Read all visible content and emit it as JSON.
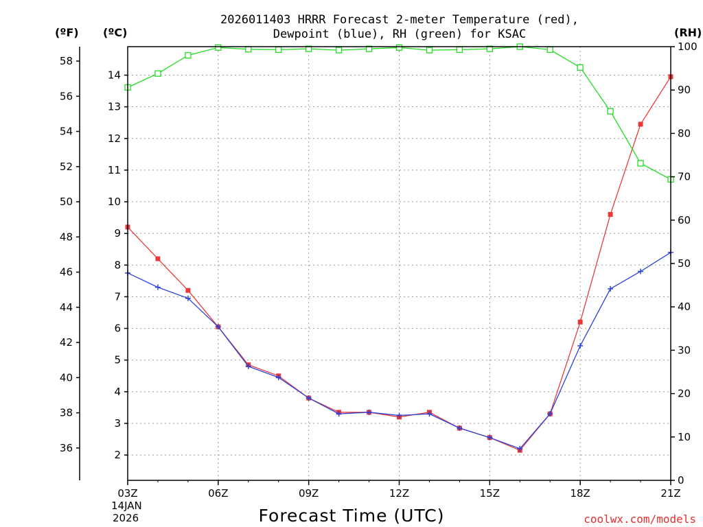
{
  "chart_data": {
    "type": "line",
    "title_line1": "2026011403 HRRR Forecast 2-meter Temperature (red),",
    "title_line2": "Dewpoint (blue), RH (green) for KSAC",
    "unit_f": "(ºF)",
    "unit_c": "(ºC)",
    "unit_rh": "(RH)",
    "xlabel": "Forecast Time (UTC)",
    "credit": "coolwx.com/models",
    "date_line1": "14JAN",
    "date_line2": "2026",
    "x_hours": [
      3,
      4,
      5,
      6,
      7,
      8,
      9,
      10,
      11,
      12,
      13,
      14,
      15,
      16,
      17,
      18,
      19,
      20,
      21
    ],
    "x_ticks": [
      {
        "hour": 3,
        "label": "03Z"
      },
      {
        "hour": 6,
        "label": "06Z"
      },
      {
        "hour": 9,
        "label": "09Z"
      },
      {
        "hour": 12,
        "label": "12Z"
      },
      {
        "hour": 15,
        "label": "15Z"
      },
      {
        "hour": 18,
        "label": "18Z"
      },
      {
        "hour": 21,
        "label": "21Z"
      }
    ],
    "xlim": [
      3,
      21
    ],
    "ylim_c": [
      1.2,
      14.9
    ],
    "ylim_f": [
      34.16,
      58.82
    ],
    "ylim_rh": [
      0,
      100
    ],
    "c_ticks": [
      "2",
      "3",
      "4",
      "5",
      "6",
      "7",
      "8",
      "9",
      "10",
      "11",
      "12",
      "13",
      "14"
    ],
    "f_ticks": [
      "36",
      "38",
      "40",
      "42",
      "44",
      "46",
      "48",
      "50",
      "52",
      "54",
      "56",
      "58"
    ],
    "rh_ticks": [
      "0",
      "10",
      "20",
      "30",
      "40",
      "50",
      "60",
      "70",
      "80",
      "90",
      "100"
    ],
    "colors": {
      "temperature": "#e83a3a",
      "dewpoint": "#2a42d8",
      "rh": "#22dd22",
      "grid": "#999999"
    },
    "series": [
      {
        "name": "Temperature",
        "units": "C",
        "marker": "filled-square",
        "values": [
          9.2,
          8.2,
          7.2,
          6.05,
          4.85,
          4.5,
          3.8,
          3.35,
          3.35,
          3.2,
          3.35,
          2.85,
          2.55,
          2.15,
          3.3,
          6.2,
          9.6,
          12.45,
          13.95
        ]
      },
      {
        "name": "Dewpoint",
        "units": "C",
        "marker": "plus",
        "values": [
          7.75,
          7.3,
          6.95,
          6.05,
          4.8,
          4.45,
          3.8,
          3.3,
          3.35,
          3.25,
          3.3,
          2.85,
          2.55,
          2.2,
          3.3,
          5.45,
          7.25,
          7.8,
          8.4
        ]
      },
      {
        "name": "RH",
        "units": "%",
        "marker": "open-square",
        "values": [
          90.6,
          93.8,
          98.0,
          99.8,
          99.4,
          99.3,
          99.5,
          99.2,
          99.5,
          99.8,
          99.2,
          99.3,
          99.5,
          100.0,
          99.3,
          95.2,
          85.1,
          73.1,
          69.4
        ]
      }
    ]
  }
}
